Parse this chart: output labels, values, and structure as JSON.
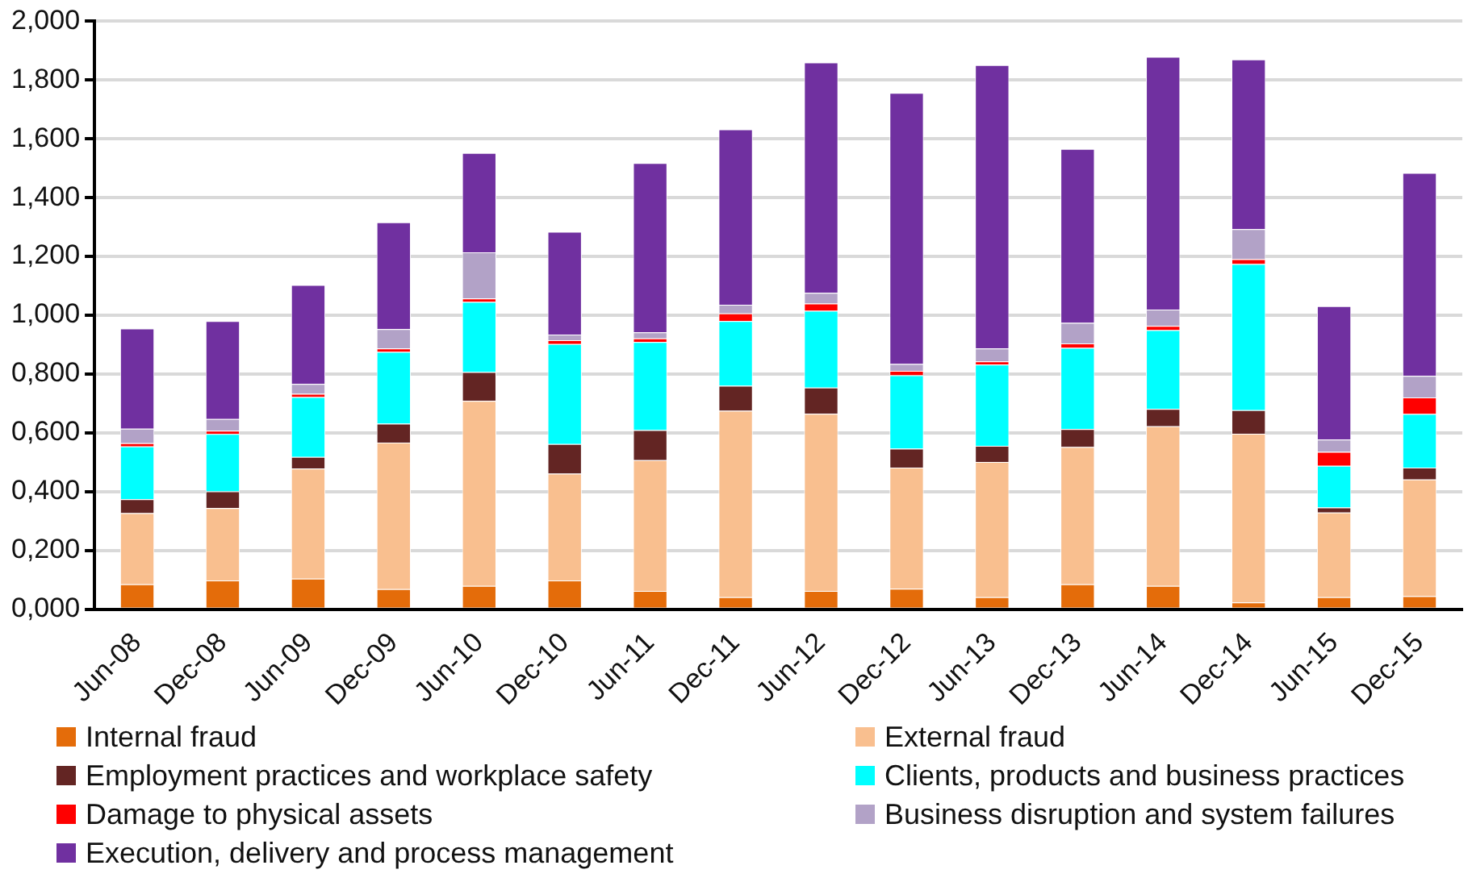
{
  "chart_data": {
    "type": "bar",
    "stacked": true,
    "categories": [
      "Jun-08",
      "Dec-08",
      "Jun-09",
      "Dec-09",
      "Jun-10",
      "Dec-10",
      "Jun-11",
      "Dec-11",
      "Jun-12",
      "Dec-12",
      "Jun-13",
      "Dec-13",
      "Jun-14",
      "Dec-14",
      "Jun-15",
      "Dec-15"
    ],
    "series": [
      {
        "name": "Internal fraud",
        "color": "#e46c0a",
        "values": [
          0.085,
          0.098,
          0.104,
          0.068,
          0.079,
          0.098,
          0.062,
          0.041,
          0.062,
          0.07,
          0.041,
          0.085,
          0.079,
          0.023,
          0.041,
          0.044
        ]
      },
      {
        "name": "External fraud",
        "color": "#f9bf8f",
        "values": [
          0.242,
          0.246,
          0.374,
          0.499,
          0.63,
          0.363,
          0.445,
          0.634,
          0.603,
          0.412,
          0.46,
          0.467,
          0.543,
          0.574,
          0.288,
          0.397
        ]
      },
      {
        "name": "Employment practices and workplace safety",
        "color": "#632523",
        "values": [
          0.047,
          0.057,
          0.04,
          0.064,
          0.098,
          0.101,
          0.102,
          0.085,
          0.089,
          0.064,
          0.055,
          0.061,
          0.059,
          0.08,
          0.017,
          0.041
        ]
      },
      {
        "name": "Clients, products and business practices",
        "color": "#00ffff",
        "values": [
          0.18,
          0.195,
          0.204,
          0.244,
          0.238,
          0.34,
          0.3,
          0.22,
          0.261,
          0.25,
          0.276,
          0.276,
          0.268,
          0.497,
          0.142,
          0.182
        ]
      },
      {
        "name": "Damage to physical assets",
        "color": "#ff0000",
        "values": [
          0.011,
          0.011,
          0.011,
          0.012,
          0.012,
          0.013,
          0.012,
          0.026,
          0.025,
          0.015,
          0.011,
          0.015,
          0.015,
          0.017,
          0.047,
          0.056
        ]
      },
      {
        "name": "Business disruption and system failures",
        "color": "#b2a2c7",
        "values": [
          0.049,
          0.04,
          0.033,
          0.066,
          0.157,
          0.019,
          0.021,
          0.03,
          0.036,
          0.023,
          0.044,
          0.07,
          0.055,
          0.102,
          0.042,
          0.074
        ]
      },
      {
        "name": "Execution, delivery and process management",
        "color": "#7030a0",
        "values": [
          0.341,
          0.333,
          0.337,
          0.363,
          0.338,
          0.35,
          0.576,
          0.596,
          0.784,
          0.922,
          0.964,
          0.592,
          0.86,
          0.577,
          0.454,
          0.69
        ]
      }
    ],
    "ylim": [
      0,
      2
    ],
    "yticks": [
      {
        "value": 0,
        "label": "0,000"
      },
      {
        "value": 0.2,
        "label": "0,200"
      },
      {
        "value": 0.4,
        "label": "0,400"
      },
      {
        "value": 0.6,
        "label": "0,600"
      },
      {
        "value": 0.8,
        "label": "0,800"
      },
      {
        "value": 1,
        "label": "1,000"
      },
      {
        "value": 1.2,
        "label": "1,200"
      },
      {
        "value": 1.4,
        "label": "1,400"
      },
      {
        "value": 1.6,
        "label": "1,600"
      },
      {
        "value": 1.8,
        "label": "1,800"
      },
      {
        "value": 2,
        "label": "2,000"
      }
    ],
    "grid": "y",
    "legend": "bottom"
  }
}
